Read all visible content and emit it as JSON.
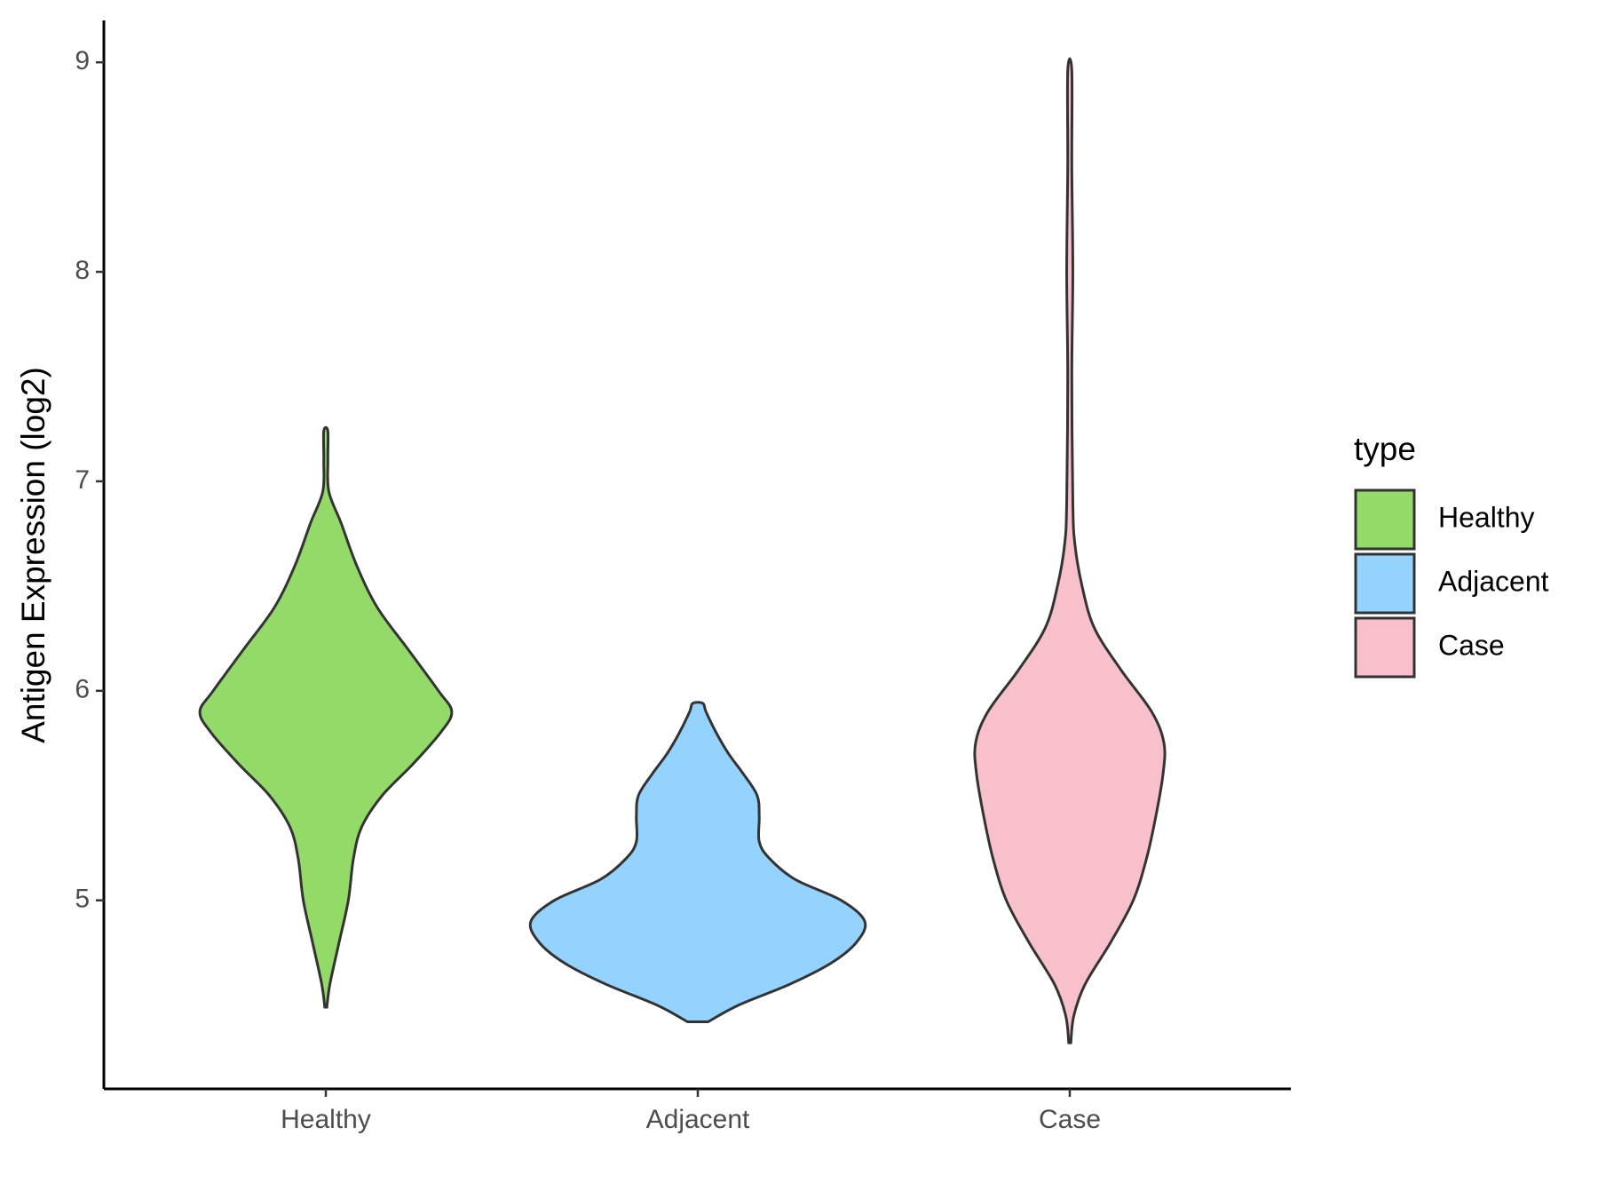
{
  "chart_data": {
    "type": "violin",
    "y_label": "Antigen Expression (log2)",
    "categories": [
      "Healthy",
      "Adjacent",
      "Case"
    ],
    "legend_title": "type",
    "ylim": [
      4.1,
      9.2
    ],
    "yticks": [
      5,
      6,
      7,
      8,
      9
    ],
    "series": [
      {
        "name": "Healthy",
        "color": "#93da69",
        "y": [
          4.49,
          4.6,
          4.8,
          5.0,
          5.2,
          5.35,
          5.5,
          5.65,
          5.8,
          5.9,
          6.0,
          6.2,
          6.4,
          6.6,
          6.8,
          6.95,
          7.1,
          7.24
        ],
        "width": [
          1,
          4,
          13,
          22,
          27,
          35,
          55,
          85,
          112,
          123,
          110,
          80,
          50,
          30,
          15,
          3,
          2,
          2
        ]
      },
      {
        "name": "Adjacent",
        "color": "#93d3fe",
        "y": [
          4.42,
          4.5,
          4.6,
          4.7,
          4.8,
          4.9,
          5.0,
          5.1,
          5.2,
          5.28,
          5.4,
          5.5,
          5.6,
          5.7,
          5.8,
          5.9,
          5.94
        ],
        "width": [
          10,
          40,
          90,
          130,
          155,
          163,
          140,
          95,
          70,
          60,
          60,
          58,
          45,
          30,
          18,
          8,
          5
        ]
      },
      {
        "name": "Case",
        "color": "#f7c0cb",
        "y": [
          4.32,
          4.45,
          4.6,
          4.8,
          5.0,
          5.2,
          5.4,
          5.6,
          5.75,
          5.9,
          6.1,
          6.3,
          6.5,
          6.7,
          6.9,
          7.5,
          8.0,
          8.5,
          8.96
        ],
        "width": [
          1,
          4,
          15,
          40,
          62,
          75,
          84,
          91,
          92,
          80,
          50,
          24,
          12,
          5,
          3,
          2,
          3,
          2,
          2
        ]
      }
    ]
  }
}
